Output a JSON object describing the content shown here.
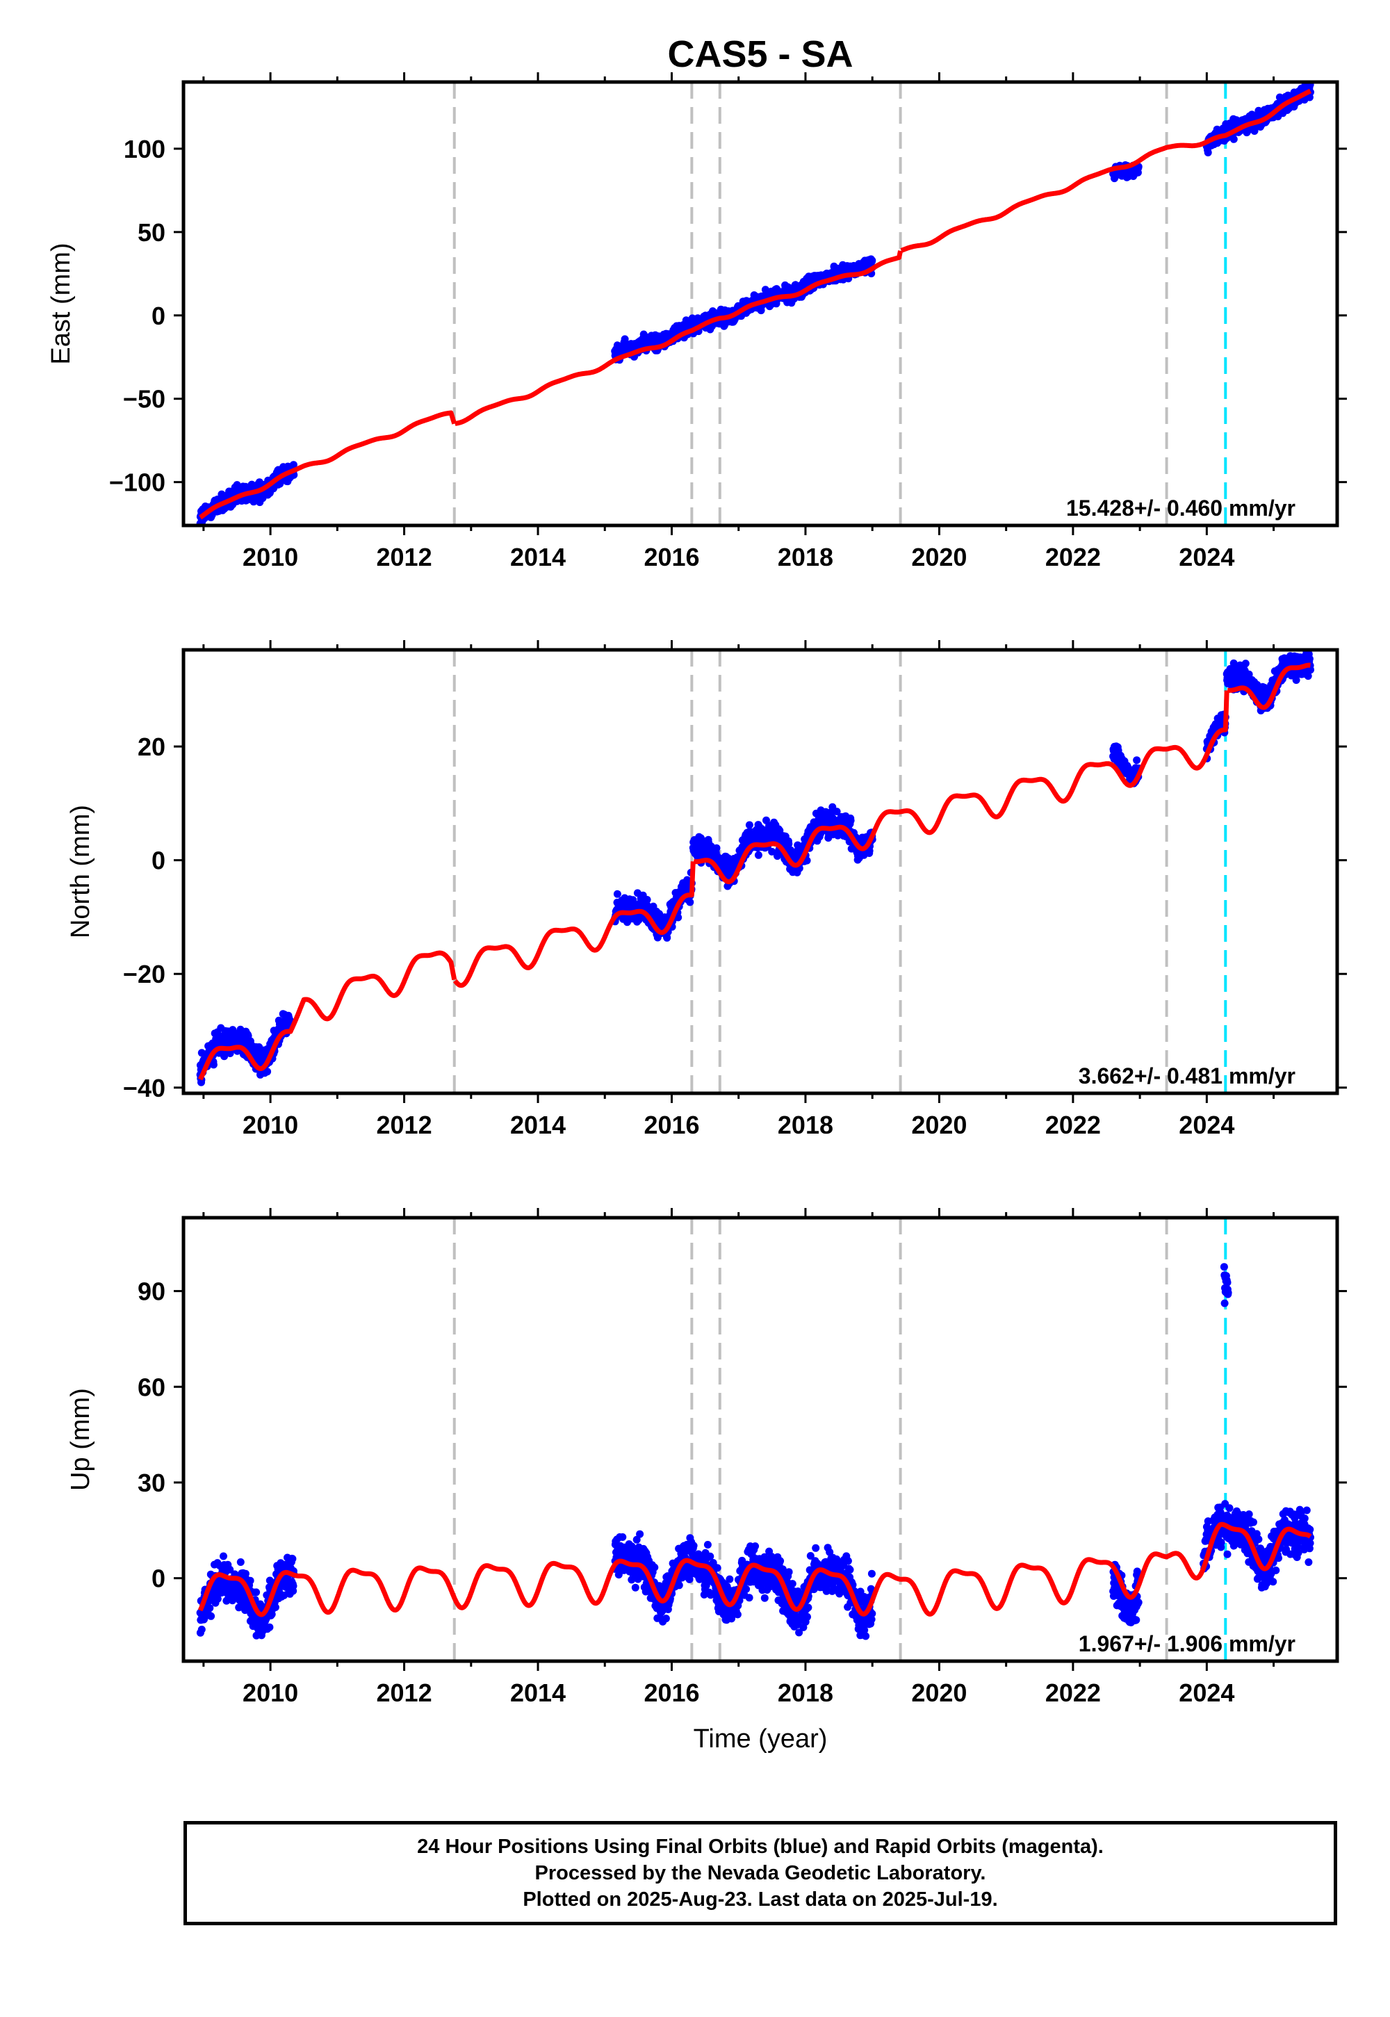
{
  "page": {
    "title": "CAS5 - SA"
  },
  "colors": {
    "final": "#0000ff",
    "model": "#ff0000",
    "equipment": "#c0c0c0",
    "event": "#00e5ff"
  },
  "footer": {
    "line1": "24 Hour Positions Using Final Orbits (blue) and Rapid Orbits (magenta).",
    "line2": "Processed by the Nevada Geodetic Laboratory.",
    "line3": "Plotted on 2025-Aug-23. Last data on 2025-Jul-19."
  },
  "chart_data": [
    {
      "type": "scatter",
      "ylabel": "East (mm)",
      "xlabel": "",
      "xlim": [
        2008.7,
        2025.95
      ],
      "ylim": [
        -126,
        140
      ],
      "xticks": [
        2010,
        2012,
        2014,
        2016,
        2018,
        2020,
        2022,
        2024
      ],
      "yticks": [
        -100,
        -50,
        0,
        50,
        100
      ],
      "ytick_labels": [
        "−100",
        "−50",
        "0",
        "50",
        "100"
      ],
      "rate_label": "15.428+/- 0.460 mm/yr",
      "equipment_changes": [
        2012.75,
        2016.3,
        2016.72,
        2019.42,
        2023.4
      ],
      "events": [
        2024.28
      ],
      "seasonal_amplitude": 1.2,
      "segments": [
        {
          "x_start": 2008.95,
          "x_end": 2010.35,
          "y_start": -120,
          "y_end": -94,
          "scatter": 5
        },
        {
          "x_start": 2015.15,
          "x_end": 2019.0,
          "y_start": -24,
          "y_end": 32,
          "scatter": 4
        },
        {
          "x_start": 2022.6,
          "x_end": 2022.98,
          "y_start": 86,
          "y_end": 89,
          "scatter": 3
        },
        {
          "x_start": 2024.0,
          "x_end": 2025.55,
          "y_start": 103,
          "y_end": 134,
          "scatter": 4
        }
      ],
      "model": {
        "x": [
          2008.95,
          2010.5,
          2012.7,
          2012.75,
          2016.3,
          2016.72,
          2019.4,
          2019.42,
          2023.4,
          2024.28,
          2025.55
        ],
        "y": [
          -120,
          -91,
          -58,
          -64,
          -10,
          -1,
          34,
          38,
          100,
          107,
          134
        ]
      }
    },
    {
      "type": "scatter",
      "ylabel": "North (mm)",
      "xlabel": "",
      "xlim": [
        2008.7,
        2025.95
      ],
      "ylim": [
        -41,
        37
      ],
      "xticks": [
        2010,
        2012,
        2014,
        2016,
        2018,
        2020,
        2022,
        2024
      ],
      "yticks": [
        -40,
        -20,
        0,
        20
      ],
      "ytick_labels": [
        "−40",
        "−20",
        "0",
        "20"
      ],
      "rate_label": "3.662+/- 0.481 mm/yr",
      "equipment_changes": [
        2012.75,
        2016.3,
        2016.72,
        2019.42,
        2023.4
      ],
      "events": [
        2024.28
      ],
      "seasonal_amplitude": 2.5,
      "segments": [
        {
          "x_start": 2008.95,
          "x_end": 2010.3,
          "y_start": -35,
          "y_end": -31,
          "scatter": 2.0
        },
        {
          "x_start": 2015.15,
          "x_end": 2016.3,
          "y_start": -11,
          "y_end": -7,
          "scatter": 2.0
        },
        {
          "x_start": 2016.32,
          "x_end": 2019.0,
          "y_start": 0,
          "y_end": 6,
          "scatter": 2.0
        },
        {
          "x_start": 2022.6,
          "x_end": 2022.98,
          "y_start": 19,
          "y_end": 18,
          "scatter": 1.5
        },
        {
          "x_start": 2024.0,
          "x_end": 2024.28,
          "y_start": 21,
          "y_end": 22,
          "scatter": 1.5
        },
        {
          "x_start": 2024.3,
          "x_end": 2025.55,
          "y_start": 30,
          "y_end": 33,
          "scatter": 2.0
        }
      ],
      "model": {
        "x": [
          2008.95,
          2010.3,
          2010.5,
          2012.7,
          2012.75,
          2016.3,
          2016.32,
          2019.42,
          2023.4,
          2024.28,
          2024.3,
          2025.55
        ],
        "y": [
          -36,
          -32,
          -26,
          -17,
          -19,
          -8,
          -2,
          7,
          18,
          21,
          28,
          33
        ]
      }
    },
    {
      "type": "scatter",
      "ylabel": "Up (mm)",
      "xlabel": "Time (year)",
      "xlim": [
        2008.7,
        2025.95
      ],
      "ylim": [
        -26,
        113
      ],
      "xticks": [
        2010,
        2012,
        2014,
        2016,
        2018,
        2020,
        2022,
        2024
      ],
      "yticks": [
        0,
        30,
        60,
        90
      ],
      "ytick_labels": [
        "0",
        "30",
        "60",
        "90"
      ],
      "rate_label": "1.967+/- 1.906 mm/yr",
      "equipment_changes": [
        2012.75,
        2016.3,
        2016.72,
        2019.42,
        2023.4
      ],
      "events": [
        2024.28
      ],
      "seasonal_amplitude": 6,
      "segments": [
        {
          "x_start": 2008.95,
          "x_end": 2010.35,
          "y_start": -6,
          "y_end": -4,
          "scatter": 6
        },
        {
          "x_start": 2015.15,
          "x_end": 2019.0,
          "y_start": 2,
          "y_end": -4,
          "scatter": 6
        },
        {
          "x_start": 2022.6,
          "x_end": 2022.98,
          "y_start": -2,
          "y_end": -1,
          "scatter": 6
        },
        {
          "x_start": 2023.95,
          "x_end": 2025.55,
          "y_start": 13,
          "y_end": 10,
          "scatter": 6
        },
        {
          "x_start": 2024.26,
          "x_end": 2024.32,
          "y_start": 95,
          "y_end": 88,
          "scatter": 6
        }
      ],
      "model": {
        "x": [
          2008.95,
          2016.0,
          2019.42,
          2023.4,
          2024.2,
          2025.55
        ],
        "y": [
          -4,
          1,
          -4,
          3,
          12,
          10
        ]
      }
    }
  ]
}
